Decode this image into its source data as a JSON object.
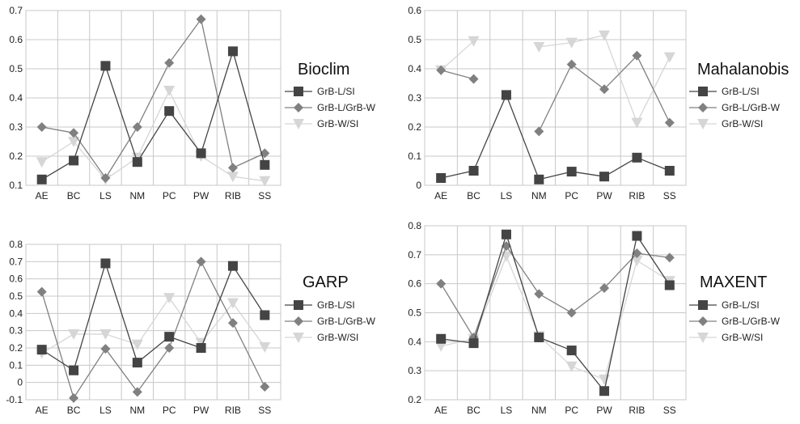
{
  "chart_data": [
    {
      "type": "line",
      "title": "Bioclim",
      "categories": [
        "AE",
        "BC",
        "LS",
        "NM",
        "PC",
        "PW",
        "RIB",
        "SS"
      ],
      "ylim": [
        0.1,
        0.7
      ],
      "yticks": [
        "0.1",
        "0.2",
        "0.3",
        "0.4",
        "0.5",
        "0.6",
        "0.7"
      ],
      "grid": true,
      "legend_position": "right",
      "series": [
        {
          "name": "GrB-L/SI",
          "marker": "square",
          "color": "#444444",
          "values": [
            0.12,
            0.185,
            0.51,
            0.18,
            0.355,
            0.21,
            0.56,
            0.17
          ]
        },
        {
          "name": "GrB-L/GrB-W",
          "marker": "diamond",
          "color": "#808080",
          "values": [
            0.3,
            0.28,
            0.125,
            0.3,
            0.52,
            0.67,
            0.16,
            0.21
          ]
        },
        {
          "name": "GrB-W/SI",
          "marker": "triangle-down",
          "color": "#d6d6d6",
          "values": [
            0.18,
            0.25,
            0.12,
            0.195,
            0.425,
            0.2,
            0.13,
            0.115
          ]
        }
      ]
    },
    {
      "type": "line",
      "title": "Mahalanobis",
      "categories": [
        "AE",
        "BC",
        "LS",
        "NM",
        "PC",
        "PW",
        "RIB",
        "SS"
      ],
      "ylim": [
        0,
        0.6
      ],
      "yticks": [
        "0",
        "0.1",
        "0.2",
        "0.3",
        "0.4",
        "0.5",
        "0.6"
      ],
      "grid": true,
      "legend_position": "right",
      "series": [
        {
          "name": "GrB-L/SI",
          "marker": "square",
          "color": "#444444",
          "values": [
            0.025,
            0.05,
            0.31,
            0.02,
            0.047,
            0.03,
            0.095,
            0.05
          ]
        },
        {
          "name": "GrB-L/GrB-W",
          "marker": "diamond",
          "color": "#808080",
          "values": [
            0.395,
            0.365,
            null,
            0.185,
            0.415,
            0.33,
            0.445,
            0.215
          ]
        },
        {
          "name": "GrB-W/SI",
          "marker": "triangle-down",
          "color": "#d6d6d6",
          "values": [
            0.395,
            0.495,
            null,
            0.475,
            0.49,
            0.515,
            0.215,
            0.44
          ]
        }
      ]
    },
    {
      "type": "line",
      "title": "GARP",
      "categories": [
        "AE",
        "BC",
        "LS",
        "NM",
        "PC",
        "PW",
        "RIB",
        "SS"
      ],
      "ylim": [
        -0.1,
        0.8
      ],
      "yticks": [
        "-0.1",
        "0",
        "0.1",
        "0.2",
        "0.3",
        "0.4",
        "0.5",
        "0.6",
        "0.7",
        "0.8"
      ],
      "grid": true,
      "legend_position": "right",
      "series": [
        {
          "name": "GrB-L/SI",
          "marker": "square",
          "color": "#444444",
          "values": [
            0.19,
            0.07,
            0.69,
            0.115,
            0.265,
            0.2,
            0.675,
            0.39
          ]
        },
        {
          "name": "GrB-L/GrB-W",
          "marker": "diamond",
          "color": "#808080",
          "values": [
            0.525,
            -0.09,
            0.195,
            -0.055,
            0.2,
            0.7,
            0.345,
            -0.025
          ]
        },
        {
          "name": "GrB-W/SI",
          "marker": "triangle-down",
          "color": "#d6d6d6",
          "values": [
            0.17,
            0.28,
            0.28,
            0.22,
            0.49,
            0.23,
            0.46,
            0.205
          ]
        }
      ]
    },
    {
      "type": "line",
      "title": "MAXENT",
      "categories": [
        "AE",
        "BC",
        "LS",
        "NM",
        "PC",
        "PW",
        "RIB",
        "SS"
      ],
      "ylim": [
        0.2,
        0.8
      ],
      "yticks": [
        "0.2",
        "0.3",
        "0.4",
        "0.5",
        "0.6",
        "0.7",
        "0.8"
      ],
      "grid": true,
      "legend_position": "right",
      "series": [
        {
          "name": "GrB-L/SI",
          "marker": "square",
          "color": "#444444",
          "values": [
            0.41,
            0.395,
            0.77,
            0.415,
            0.37,
            0.23,
            0.765,
            0.595
          ]
        },
        {
          "name": "GrB-L/GrB-W",
          "marker": "diamond",
          "color": "#808080",
          "values": [
            0.6,
            0.415,
            0.73,
            0.565,
            0.5,
            0.585,
            0.705,
            0.69
          ]
        },
        {
          "name": "GrB-W/SI",
          "marker": "triangle-down",
          "color": "#d6d6d6",
          "values": [
            0.385,
            0.41,
            0.695,
            0.42,
            0.315,
            0.27,
            0.68,
            0.61
          ]
        }
      ]
    }
  ]
}
